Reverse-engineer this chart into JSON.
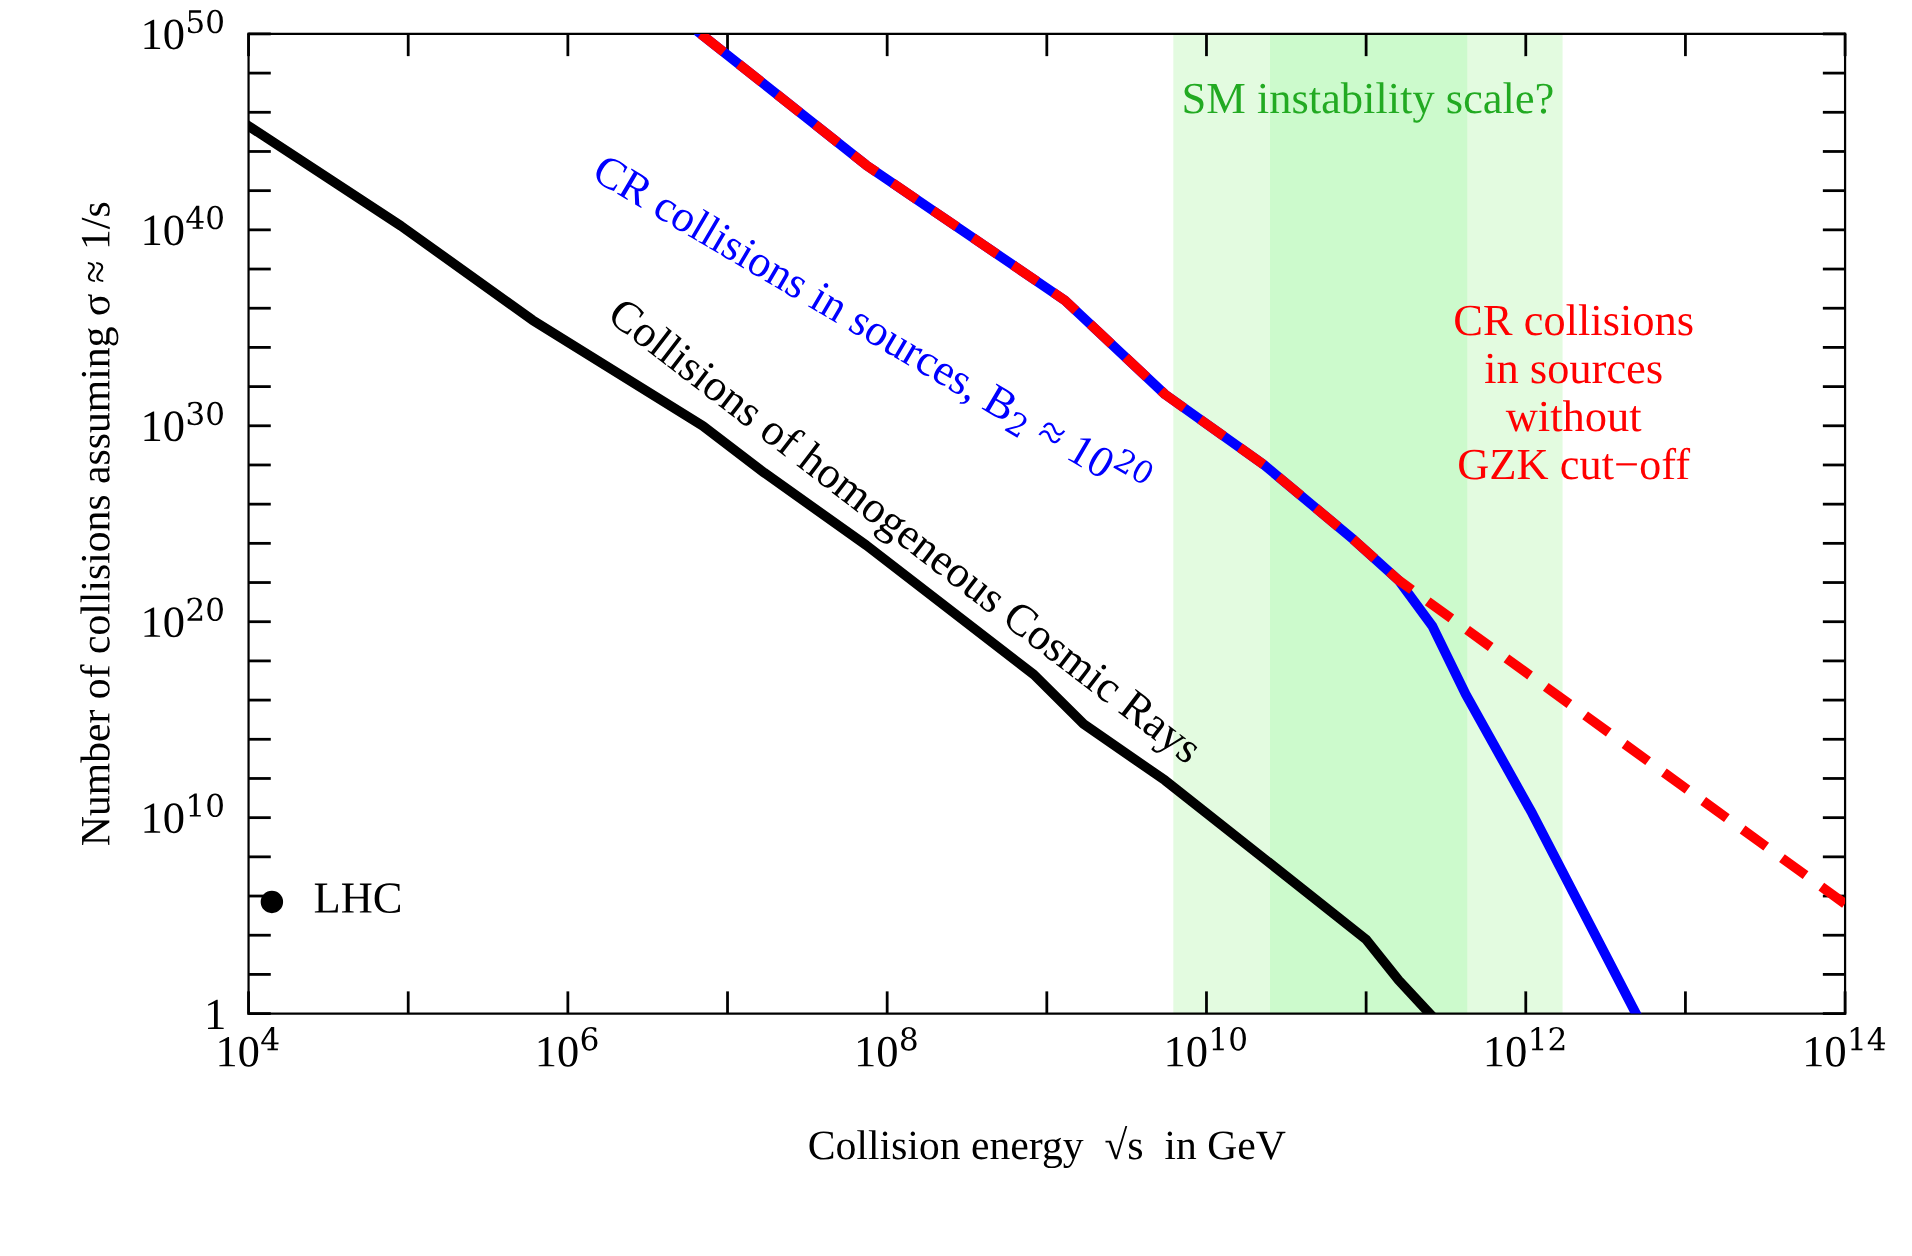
{
  "chart_data": {
    "type": "line",
    "log": "xy",
    "xlabel": "Collision energy  √s  in GeV",
    "ylabel": "Number of collisions assuming σ ≈ 1/s",
    "xlim": [
      10000.0,
      100000000000000.0
    ],
    "ylim": [
      1,
      1e+50
    ],
    "xticks": [
      {
        "value": 10000.0,
        "label": "10$^{4}$"
      },
      {
        "value": 100000.0,
        "label": null
      },
      {
        "value": 1000000.0,
        "label": "10$^{6}$"
      },
      {
        "value": 10000000.0,
        "label": null
      },
      {
        "value": 100000000.0,
        "label": "10$^{8}$"
      },
      {
        "value": 1000000000.0,
        "label": null
      },
      {
        "value": 10000000000.0,
        "label": "10$^{10}$"
      },
      {
        "value": 100000000000.0,
        "label": null
      },
      {
        "value": 1000000000000.0,
        "label": "10$^{12}$"
      },
      {
        "value": 10000000000000.0,
        "label": null
      },
      {
        "value": 100000000000000.0,
        "label": "10$^{14}$"
      }
    ],
    "yticks": [
      1,
      {
        "value": 100.0,
        "label": null
      },
      {
        "value": 10000.0,
        "label": null
      },
      {
        "value": 1000000.0,
        "label": null
      },
      {
        "value": 100000000.0,
        "label": null
      },
      {
        "value": 10000000000.0,
        "label": "10$^{10}$"
      },
      {
        "value": 1000000000000.0,
        "label": null
      },
      {
        "value": 100000000000000.0,
        "label": null
      },
      {
        "value": 1e+16,
        "label": null
      },
      {
        "value": 1e+18,
        "label": null
      },
      {
        "value": 1e+20,
        "label": "10$^{20}$"
      },
      {
        "value": 1e+22,
        "label": null
      },
      {
        "value": 1e+24,
        "label": null
      },
      {
        "value": 1e+26,
        "label": null
      },
      {
        "value": 1e+28,
        "label": null
      },
      {
        "value": 1e+30,
        "label": "10$^{30}$"
      },
      {
        "value": 1e+32,
        "label": null
      },
      {
        "value": 1e+34,
        "label": null
      },
      {
        "value": 1e+36,
        "label": null
      },
      {
        "value": 1e+38,
        "label": null
      },
      {
        "value": 1e+40,
        "label": "10$^{40}$"
      },
      {
        "value": 1e+42,
        "label": null
      },
      {
        "value": 1e+44,
        "label": null
      },
      {
        "value": 1e+46,
        "label": null
      },
      {
        "value": 1e+48,
        "label": null
      },
      {
        "value": 1e+50,
        "label": "10$^{50}$"
      }
    ],
    "bands": [
      {
        "axis": "x",
        "from": 6200000000.0,
        "to": 1700000000000.0,
        "color": "#e3fbe0",
        "label": "SM instability scale?"
      },
      {
        "axis": "x",
        "from": 25000000000.0,
        "to": 430000000000.0,
        "color": "#ccfacc"
      }
    ],
    "series": [
      {
        "name": "Collisions of homogeneous Cosmic Rays",
        "color": "#000000",
        "x": [
          10000.0,
          90000.0,
          600000.0,
          7000000.0,
          17000000.0,
          74000000.0,
          830000000.0,
          1700000000.0,
          5500000000.0,
          23000000000.0,
          100000000000.0,
          160000000000.0,
          250000000000.0
        ],
        "values": [
          2e+45,
          1.6e+40,
          2.5e+35,
          1e+30,
          4e+27,
          8e+23,
          2e+17,
          600000000000000.0,
          800000000000.0,
          80000000.0,
          6000.0,
          50,
          1
        ]
      },
      {
        "name": "CR collisions in sources, B$_{2}$ ≈ 10$^{20}$",
        "color": "#0000ff",
        "x": [
          6800000.0,
          74000000.0,
          1300000000.0,
          5500000000.0,
          23000000000.0,
          83000000000.0,
          160000000000.0,
          260000000000.0,
          420000000000.0,
          1100000000000.0,
          4900000000000.0
        ],
        "values": [
          1e+50,
          2e+43,
          2.5e+36,
          4e+31,
          1e+28,
          1.6e+24,
          1.3e+22,
          6e+19,
          2e+16,
          16000000000.0,
          1
        ]
      },
      {
        "name": "CR collisions\nin sources\nwithout\nGZK cut−off",
        "color": "#ff0000",
        "line_style": "dashed",
        "x": [
          6800000.0,
          74000000.0,
          1300000000.0,
          5500000000.0,
          23000000000.0,
          83000000000.0,
          160000000000.0,
          100000000000000.0
        ],
        "values": [
          1e+50,
          2e+43,
          2.5e+36,
          4e+31,
          1e+28,
          1.6e+24,
          1.3e+22,
          400000.0
        ]
      },
      {
        "name": "LHC",
        "type": "scatter",
        "marker": "circle",
        "color": "#000000",
        "x": [
          14000.0
        ],
        "values": [
          500000.0
        ]
      }
    ]
  }
}
